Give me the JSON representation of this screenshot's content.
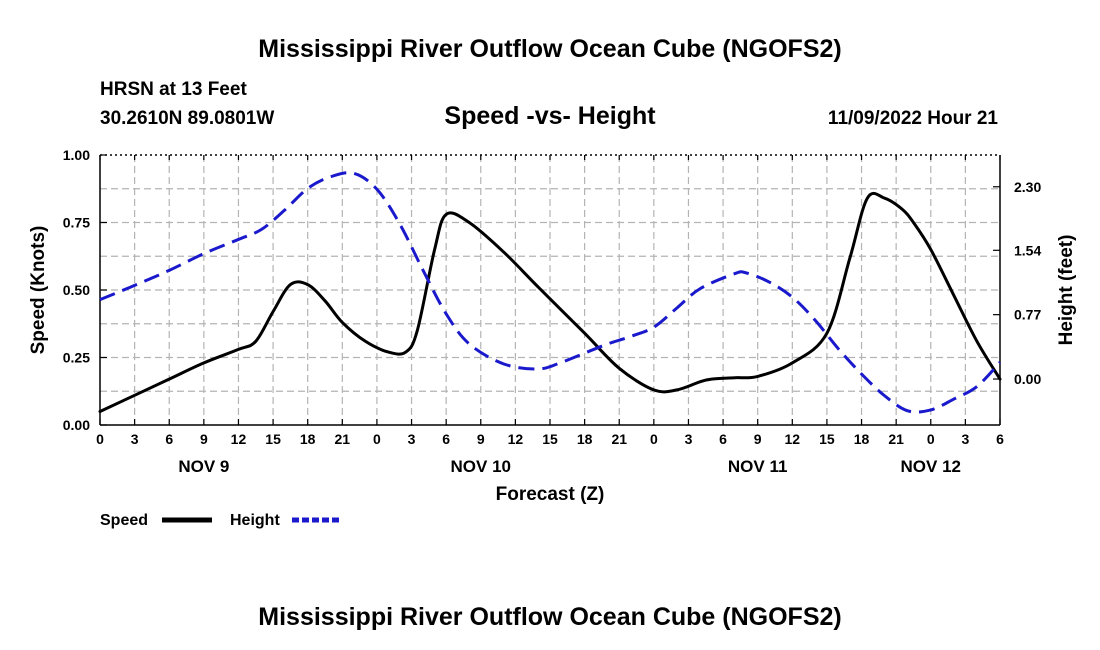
{
  "header": {
    "title": "Mississippi River Outflow Ocean Cube (NGOFS2)",
    "station": "HRSN at 13 Feet",
    "location": "30.2610N  89.0801W",
    "chart_subtitle": "Speed -vs- Height",
    "datetime": "11/09/2022 Hour 21"
  },
  "footer": {
    "title": "Mississippi River Outflow Ocean Cube (NGOFS2)"
  },
  "chart_data": {
    "type": "line",
    "title": "Speed -vs- Height",
    "xlabel": "Forecast (Z)",
    "ylabel": "Speed (Knots)",
    "y2label": "Height (feet)",
    "x_range_hours": [
      0,
      78
    ],
    "x_tick_hours": [
      0,
      3,
      6,
      9,
      12,
      15,
      18,
      21,
      24,
      27,
      30,
      33,
      36,
      39,
      42,
      45,
      48,
      51,
      54,
      57,
      60,
      63,
      66,
      69,
      72,
      75,
      78
    ],
    "x_tick_labels": [
      "0",
      "3",
      "6",
      "9",
      "12",
      "15",
      "18",
      "21",
      "0",
      "3",
      "6",
      "9",
      "12",
      "15",
      "18",
      "21",
      "0",
      "3",
      "6",
      "9",
      "12",
      "15",
      "18",
      "21",
      "0",
      "3",
      "6"
    ],
    "day_labels": [
      {
        "hour": 9,
        "label": "NOV 9"
      },
      {
        "hour": 33,
        "label": "NOV 10"
      },
      {
        "hour": 57,
        "label": "NOV 11"
      },
      {
        "hour": 72,
        "label": "NOV 12"
      }
    ],
    "ylim": [
      0,
      1.0
    ],
    "y_ticks": [
      0,
      0.25,
      0.5,
      0.75,
      1.0
    ],
    "y_tick_labels": [
      "0.00",
      "0.25",
      "0.50",
      "0.75",
      "1.00"
    ],
    "y2lim": [
      -0.55,
      2.68
    ],
    "y2_ticks": [
      0.0,
      0.77,
      1.54,
      2.3
    ],
    "y2_tick_labels": [
      "0.00",
      "0.77",
      "1.54",
      "2.30"
    ],
    "grid": true,
    "series": [
      {
        "name": "Speed",
        "axis": "left",
        "color": "#000000",
        "style": "solid",
        "x": [
          0,
          3,
          6,
          9,
          12,
          13.5,
          15,
          16.5,
          18,
          19.5,
          21,
          23,
          25,
          26.5,
          27.5,
          29,
          30,
          32,
          35,
          38,
          42,
          45,
          48,
          50,
          52,
          53,
          55,
          57,
          60,
          63,
          65,
          66.5,
          68,
          69.5,
          70.5,
          72,
          74,
          76,
          78
        ],
        "values": [
          0.05,
          0.11,
          0.17,
          0.23,
          0.28,
          0.31,
          0.42,
          0.52,
          0.52,
          0.46,
          0.38,
          0.31,
          0.27,
          0.27,
          0.35,
          0.65,
          0.78,
          0.75,
          0.64,
          0.51,
          0.34,
          0.21,
          0.13,
          0.13,
          0.16,
          0.17,
          0.175,
          0.18,
          0.23,
          0.34,
          0.62,
          0.84,
          0.84,
          0.8,
          0.75,
          0.65,
          0.48,
          0.31,
          0.17
        ]
      },
      {
        "name": "Height",
        "axis": "right",
        "color": "#1a1acc",
        "style": "dashed",
        "x": [
          0,
          3,
          6,
          9,
          12,
          14,
          16,
          18,
          20,
          22,
          24,
          26,
          28,
          30,
          32,
          35,
          38,
          40,
          42,
          44,
          46,
          48,
          50,
          52,
          55,
          56,
          58,
          60,
          62,
          64,
          66,
          68,
          70,
          72,
          74,
          76,
          78
        ],
        "values": [
          0.95,
          1.12,
          1.3,
          1.5,
          1.67,
          1.79,
          2.02,
          2.28,
          2.42,
          2.46,
          2.27,
          1.85,
          1.3,
          0.78,
          0.42,
          0.18,
          0.12,
          0.2,
          0.31,
          0.42,
          0.51,
          0.62,
          0.85,
          1.08,
          1.26,
          1.27,
          1.16,
          0.98,
          0.7,
          0.36,
          0.06,
          -0.2,
          -0.38,
          -0.37,
          -0.24,
          -0.09,
          0.2
        ]
      }
    ],
    "legend": [
      {
        "label": "Speed",
        "color": "#000000",
        "style": "solid"
      },
      {
        "label": "Height",
        "color": "#1a1acc",
        "style": "dashed"
      }
    ],
    "legend_position": "bottom-left"
  }
}
